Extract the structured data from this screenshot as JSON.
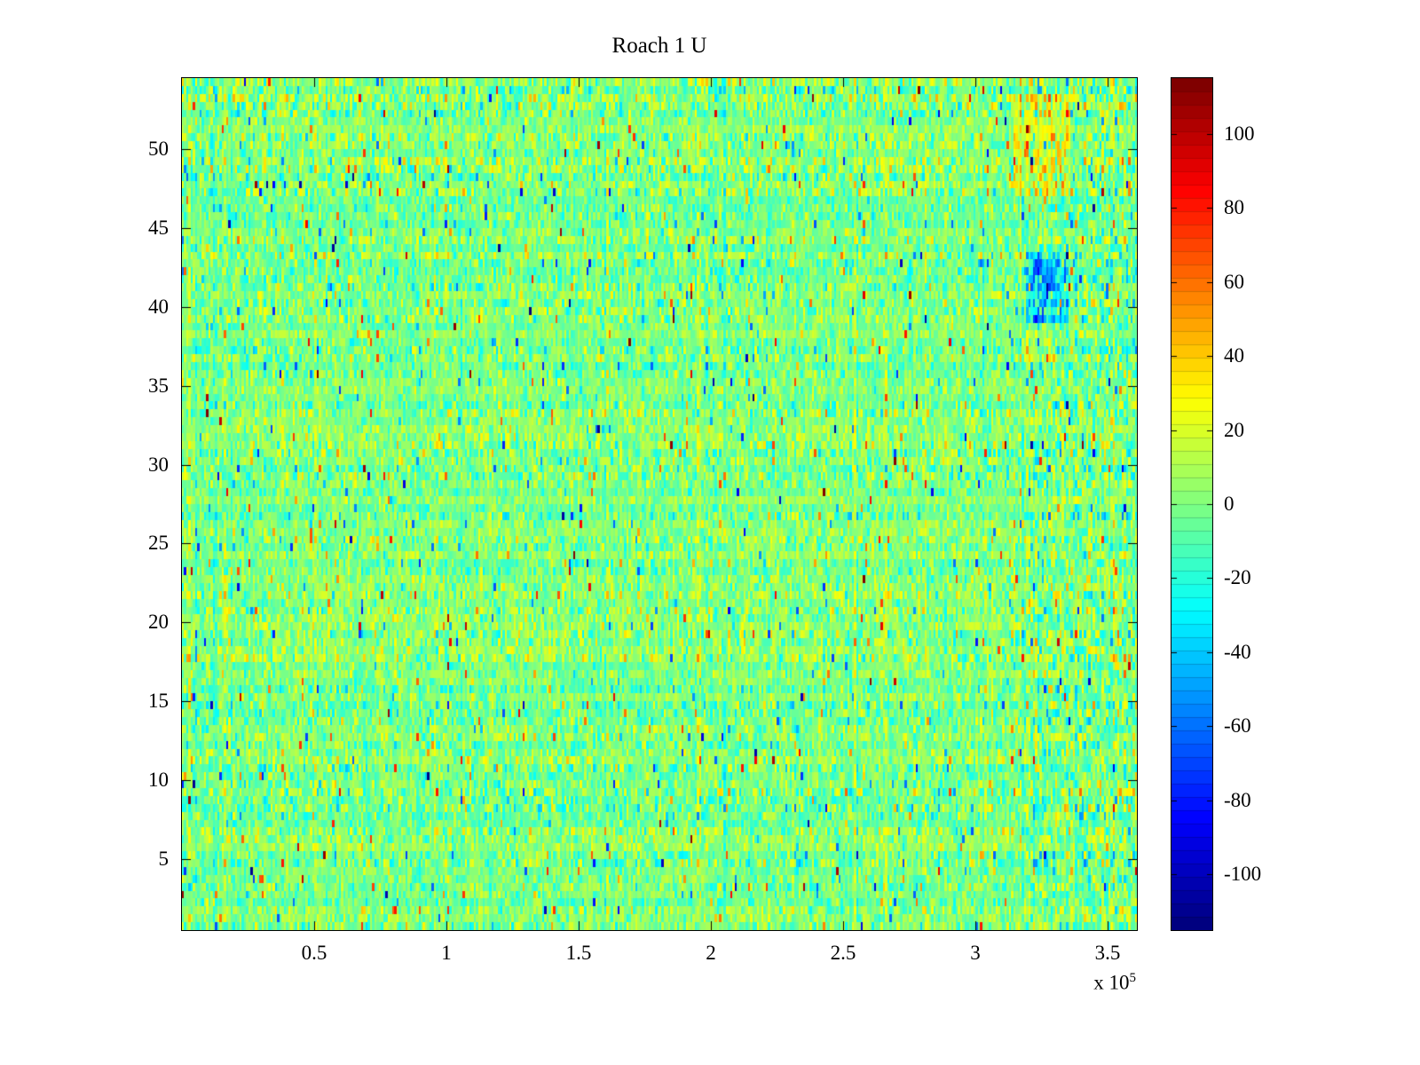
{
  "figure": {
    "background": "#ffffff"
  },
  "chart_data": {
    "type": "heatmap",
    "title": "Roach 1 U",
    "grid": false,
    "x_axis": {
      "data_range": [
        0,
        361000
      ],
      "tick_values": [
        50000,
        100000,
        150000,
        200000,
        250000,
        300000,
        350000
      ],
      "tick_labels": [
        "0.5",
        "1",
        "1.5",
        "2",
        "2.5",
        "3",
        "3.5"
      ],
      "multiplier": {
        "base": "x 10",
        "exponent": "5"
      }
    },
    "y_axis": {
      "data_range": [
        0.5,
        54.5
      ],
      "tick_values": [
        5,
        10,
        15,
        20,
        25,
        30,
        35,
        40,
        45,
        50
      ],
      "tick_labels": [
        "5",
        "10",
        "15",
        "20",
        "25",
        "30",
        "35",
        "40",
        "45",
        "50"
      ]
    },
    "colorbar": {
      "position": "right",
      "colormap": "jet",
      "segments": 64,
      "value_range": [
        -115,
        115
      ],
      "tick_values": [
        100,
        80,
        60,
        40,
        20,
        0,
        -20,
        -40,
        -60,
        -80,
        -100
      ],
      "tick_labels": [
        "100",
        "80",
        "60",
        "40",
        "20",
        "0",
        "-20",
        "-40",
        "-60",
        "-80",
        "-100"
      ]
    },
    "heatmap_model": {
      "description": "Noisy multichannel signal image, mean near 0 (green), speckled cyan/yellow, rare red/blue outliers",
      "rows": 108,
      "cols": 432,
      "seed": 20231,
      "row_offset_max": 6,
      "base_sigma": 9,
      "sigma_jitter": 8,
      "col_offset_prob": 0.08,
      "col_offset_max": 13,
      "outlier_prob": 0.025,
      "outlier_min": 25,
      "outlier_span": 45,
      "extreme_prob": 0.004,
      "extreme_min": 70,
      "extreme_span": 45,
      "active_region": {
        "x0": 0.885,
        "x1": 1.0,
        "sigma_mult": 1.35
      },
      "patches": [
        {
          "x0": 0.885,
          "x1": 0.928,
          "y0": 0.715,
          "y1": 0.8,
          "delta": -38
        },
        {
          "x0": 0.87,
          "x1": 0.93,
          "y0": 0.86,
          "y1": 0.985,
          "delta": 20
        },
        {
          "x0": 0.88,
          "x1": 0.92,
          "y0": 0.665,
          "y1": 0.69,
          "delta": 15
        }
      ]
    }
  }
}
